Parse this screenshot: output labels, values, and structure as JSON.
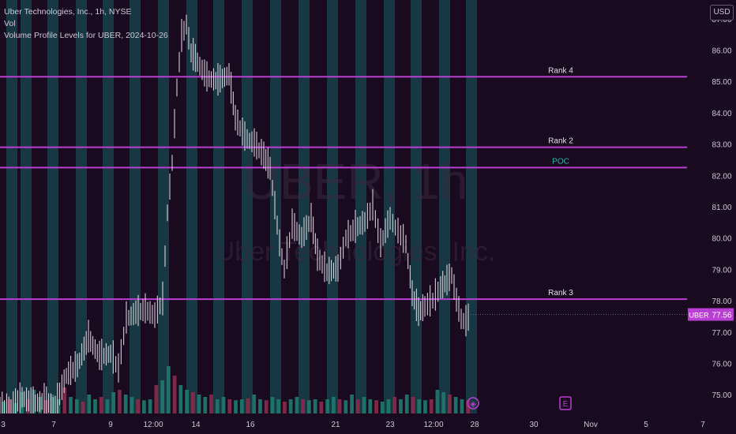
{
  "legend": {
    "symbol_line": "Uber Technologies, Inc., 1h, NYSE",
    "indicator_1": "Vol",
    "indicator_2": "Volume Profile Levels for UBER, 2024-10-26"
  },
  "currency_button": "USD",
  "watermark": {
    "symbol": "UBER, 1h",
    "name": "Uber Technologies, Inc."
  },
  "price_tag": {
    "symbol": "UBER",
    "value": "77.56"
  },
  "colors": {
    "background": "#1a0a20",
    "session_band": "#17404a",
    "level_line": "#b93ed3",
    "poc_label": "#2fb3a6",
    "candle": "#e8e0ea",
    "volume_up": "#1f7a6e",
    "volume_down": "#8b2a4a",
    "axis_text": "#d1c4d6"
  },
  "event_markers": [
    {
      "type": "dividend-or-event",
      "glyph": "◈",
      "x_label": "28"
    },
    {
      "type": "earnings",
      "glyph": "E",
      "x_label": "30"
    }
  ],
  "chart_data": {
    "type": "line",
    "ylim": [
      74.4,
      87.6
    ],
    "y_ticks": [
      "87.00",
      "86.00",
      "85.00",
      "84.00",
      "83.00",
      "82.00",
      "81.00",
      "80.00",
      "79.00",
      "78.00",
      "77.00",
      "76.00",
      "75.00"
    ],
    "x_ticks": [
      "3",
      "7",
      "9",
      "12:00",
      "14",
      "16",
      "21",
      "23",
      "12:00",
      "28",
      "30",
      "Nov",
      "5",
      "7"
    ],
    "levels": [
      {
        "label": "Rank 4",
        "price": 85.15
      },
      {
        "label": "Rank 2",
        "price": 82.9
      },
      {
        "label": "POC",
        "price": 82.25
      },
      {
        "label": "Rank 3",
        "price": 78.05
      }
    ],
    "current_price": 77.56,
    "price_path": [
      [
        0,
        74.5
      ],
      [
        14,
        74.6
      ],
      [
        28,
        74.9
      ],
      [
        42,
        74.7
      ],
      [
        56,
        74.8
      ],
      [
        70,
        74.6
      ],
      [
        84,
        75.6
      ],
      [
        98,
        75.9
      ],
      [
        112,
        76.8
      ],
      [
        126,
        76.2
      ],
      [
        140,
        76.3
      ],
      [
        150,
        75.8
      ],
      [
        160,
        77.4
      ],
      [
        172,
        77.6
      ],
      [
        184,
        77.7
      ],
      [
        196,
        77.5
      ],
      [
        206,
        78.0
      ],
      [
        212,
        80.8
      ],
      [
        218,
        82.4
      ],
      [
        224,
        84.8
      ],
      [
        230,
        86.4
      ],
      [
        236,
        86.8
      ],
      [
        242,
        85.9
      ],
      [
        250,
        85.6
      ],
      [
        262,
        85.1
      ],
      [
        276,
        85.0
      ],
      [
        290,
        85.2
      ],
      [
        298,
        83.8
      ],
      [
        310,
        83.2
      ],
      [
        322,
        83.0
      ],
      [
        334,
        82.6
      ],
      [
        342,
        82.2
      ],
      [
        348,
        81.0
      ],
      [
        354,
        79.8
      ],
      [
        360,
        79.0
      ],
      [
        370,
        80.4
      ],
      [
        382,
        80.0
      ],
      [
        394,
        80.6
      ],
      [
        402,
        79.4
      ],
      [
        414,
        78.9
      ],
      [
        428,
        79.0
      ],
      [
        438,
        80.0
      ],
      [
        450,
        80.3
      ],
      [
        462,
        80.5
      ],
      [
        472,
        81.0
      ],
      [
        482,
        79.8
      ],
      [
        494,
        80.6
      ],
      [
        504,
        80.2
      ],
      [
        514,
        79.8
      ],
      [
        522,
        78.2
      ],
      [
        530,
        77.6
      ],
      [
        538,
        77.8
      ],
      [
        548,
        78.0
      ],
      [
        558,
        78.4
      ],
      [
        566,
        78.6
      ],
      [
        572,
        78.8
      ],
      [
        578,
        78.0
      ],
      [
        584,
        77.4
      ],
      [
        590,
        77.3
      ],
      [
        596,
        77.56
      ]
    ],
    "volume": [
      0.25,
      0.3,
      0.22,
      0.45,
      0.3,
      0.5,
      0.35,
      0.28,
      0.4,
      0.3,
      0.55,
      0.35,
      0.3,
      0.25,
      0.4,
      0.3,
      0.35,
      0.3,
      0.45,
      0.5,
      0.4,
      0.35,
      0.3,
      0.28,
      0.3,
      0.6,
      0.7,
      1.0,
      0.8,
      0.6,
      0.5,
      0.45,
      0.4,
      0.35,
      0.4,
      0.3,
      0.35,
      0.3,
      0.28,
      0.3,
      0.32,
      0.4,
      0.3,
      0.28,
      0.35,
      0.3,
      0.25,
      0.3,
      0.35,
      0.3,
      0.28,
      0.3,
      0.25,
      0.3,
      0.35,
      0.3,
      0.28,
      0.4,
      0.3,
      0.35,
      0.3,
      0.28,
      0.25,
      0.3,
      0.35,
      0.3,
      0.4,
      0.35,
      0.3,
      0.28,
      0.3,
      0.5,
      0.45,
      0.4,
      0.35,
      0.3,
      0.28
    ]
  }
}
